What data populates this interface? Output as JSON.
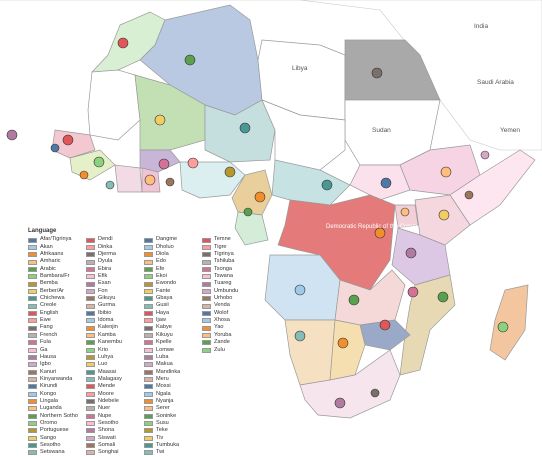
{
  "map": {
    "country_labels": [
      "Libya",
      "Sudan",
      "Saudi Arabia",
      "Yemen",
      "India",
      "Democratic Republic of the Congo"
    ]
  },
  "legend": {
    "title": "Language",
    "columns": [
      [
        {
          "label": "Afar/Tigrinya",
          "color": "#4e79a7"
        },
        {
          "label": "Akan",
          "color": "#a0cbe8"
        },
        {
          "label": "Afrikaans",
          "color": "#f28e2b"
        },
        {
          "label": "Amharic",
          "color": "#ffbe7d"
        },
        {
          "label": "Arabic",
          "color": "#59a14f"
        },
        {
          "label": "Bambara/Fr",
          "color": "#8cd17d"
        },
        {
          "label": "Bemba",
          "color": "#b6992d"
        },
        {
          "label": "Berber/Ar",
          "color": "#f1ce63"
        },
        {
          "label": "Chichewa",
          "color": "#499894"
        },
        {
          "label": "Creole",
          "color": "#86bcb6"
        },
        {
          "label": "English",
          "color": "#e15759"
        },
        {
          "label": "Ewe",
          "color": "#ff9d9a"
        },
        {
          "label": "Fang",
          "color": "#79706e"
        },
        {
          "label": "French",
          "color": "#bab0ac"
        },
        {
          "label": "Fula",
          "color": "#d37295"
        },
        {
          "label": "Ga",
          "color": "#fabfd2"
        },
        {
          "label": "Hausa",
          "color": "#b07aa1"
        },
        {
          "label": "Igbo",
          "color": "#d4a6c8"
        },
        {
          "label": "Kanuri",
          "color": "#9d7660"
        },
        {
          "label": "Kinyarwanda",
          "color": "#d7b5a6"
        },
        {
          "label": "Kirundi",
          "color": "#4e79a7"
        },
        {
          "label": "Kongo",
          "color": "#a0cbe8"
        },
        {
          "label": "Lingala",
          "color": "#f28e2b"
        },
        {
          "label": "Luganda",
          "color": "#ffbe7d"
        },
        {
          "label": "Northern Sotho",
          "color": "#59a14f"
        },
        {
          "label": "Oromo",
          "color": "#8cd17d"
        },
        {
          "label": "Portuguese",
          "color": "#b6992d"
        },
        {
          "label": "Sango",
          "color": "#f1ce63"
        },
        {
          "label": "Sesotho",
          "color": "#499894"
        },
        {
          "label": "Setswana",
          "color": "#86bcb6"
        }
      ],
      [
        {
          "label": "Dendi",
          "color": "#e15759"
        },
        {
          "label": "Dinka",
          "color": "#ff9d9a"
        },
        {
          "label": "Djerma",
          "color": "#79706e"
        },
        {
          "label": "Dyula",
          "color": "#bab0ac"
        },
        {
          "label": "Ebira",
          "color": "#d37295"
        },
        {
          "label": "Efik",
          "color": "#fabfd2"
        },
        {
          "label": "Esan",
          "color": "#b07aa1"
        },
        {
          "label": "Fon",
          "color": "#d4a6c8"
        },
        {
          "label": "Gikuyu",
          "color": "#9d7660"
        },
        {
          "label": "Gurma",
          "color": "#d7b5a6"
        },
        {
          "label": "Ibibio",
          "color": "#4e79a7"
        },
        {
          "label": "Idoma",
          "color": "#a0cbe8"
        },
        {
          "label": "Kalenjin",
          "color": "#f28e2b"
        },
        {
          "label": "Kamba",
          "color": "#ffbe7d"
        },
        {
          "label": "Kanembu",
          "color": "#59a14f"
        },
        {
          "label": "Krio",
          "color": "#8cd17d"
        },
        {
          "label": "Luhya",
          "color": "#b6992d"
        },
        {
          "label": "Luo",
          "color": "#f1ce63"
        },
        {
          "label": "Maasai",
          "color": "#499894"
        },
        {
          "label": "Malagasy",
          "color": "#86bcb6"
        },
        {
          "label": "Mende",
          "color": "#e15759"
        },
        {
          "label": "Moore",
          "color": "#ff9d9a"
        },
        {
          "label": "Ndebele",
          "color": "#79706e"
        },
        {
          "label": "Nuer",
          "color": "#bab0ac"
        },
        {
          "label": "Nupe",
          "color": "#d37295"
        },
        {
          "label": "Sesotho",
          "color": "#fabfd2"
        },
        {
          "label": "Shona",
          "color": "#b07aa1"
        },
        {
          "label": "Siswati",
          "color": "#d4a6c8"
        },
        {
          "label": "Somali",
          "color": "#9d7660"
        },
        {
          "label": "Songhai",
          "color": "#d7b5a6"
        }
      ],
      [
        {
          "label": "Dangme",
          "color": "#4e79a7"
        },
        {
          "label": "Dholuo",
          "color": "#a0cbe8"
        },
        {
          "label": "Diola",
          "color": "#f28e2b"
        },
        {
          "label": "Edo",
          "color": "#ffbe7d"
        },
        {
          "label": "Efe",
          "color": "#59a14f"
        },
        {
          "label": "Ekoi",
          "color": "#8cd17d"
        },
        {
          "label": "Ewondo",
          "color": "#b6992d"
        },
        {
          "label": "Fante",
          "color": "#f1ce63"
        },
        {
          "label": "Gbaya",
          "color": "#499894"
        },
        {
          "label": "Gusii",
          "color": "#86bcb6"
        },
        {
          "label": "Haya",
          "color": "#e15759"
        },
        {
          "label": "Ijaw",
          "color": "#ff9d9a"
        },
        {
          "label": "Kabye",
          "color": "#79706e"
        },
        {
          "label": "Kikuyu",
          "color": "#bab0ac"
        },
        {
          "label": "Kpelle",
          "color": "#d37295"
        },
        {
          "label": "Lomwe",
          "color": "#fabfd2"
        },
        {
          "label": "Luba",
          "color": "#b07aa1"
        },
        {
          "label": "Makua",
          "color": "#d4a6c8"
        },
        {
          "label": "Mandinka",
          "color": "#9d7660"
        },
        {
          "label": "Meru",
          "color": "#d7b5a6"
        },
        {
          "label": "Mossi",
          "color": "#4e79a7"
        },
        {
          "label": "Ngala",
          "color": "#a0cbe8"
        },
        {
          "label": "Nyanja",
          "color": "#f28e2b"
        },
        {
          "label": "Serer",
          "color": "#ffbe7d"
        },
        {
          "label": "Soninke",
          "color": "#59a14f"
        },
        {
          "label": "Susu",
          "color": "#8cd17d"
        },
        {
          "label": "Teke",
          "color": "#b6992d"
        },
        {
          "label": "Tiv",
          "color": "#f1ce63"
        },
        {
          "label": "Tumbuka",
          "color": "#499894"
        },
        {
          "label": "Twi",
          "color": "#86bcb6"
        }
      ],
      [
        {
          "label": "Temne",
          "color": "#e15759"
        },
        {
          "label": "Tigre",
          "color": "#ff9d9a"
        },
        {
          "label": "Tigrinya",
          "color": "#79706e"
        },
        {
          "label": "Tshiluba",
          "color": "#bab0ac"
        },
        {
          "label": "Tsonga",
          "color": "#d37295"
        },
        {
          "label": "Tswana",
          "color": "#fabfd2"
        },
        {
          "label": "Tuareg",
          "color": "#b07aa1"
        },
        {
          "label": "Umbundu",
          "color": "#d4a6c8"
        },
        {
          "label": "Urhobo",
          "color": "#9d7660"
        },
        {
          "label": "Venda",
          "color": "#d7b5a6"
        },
        {
          "label": "Wolof",
          "color": "#4e79a7"
        },
        {
          "label": "Xhosa",
          "color": "#a0cbe8"
        },
        {
          "label": "Yao",
          "color": "#f28e2b"
        },
        {
          "label": "Yoruba",
          "color": "#ffbe7d"
        },
        {
          "label": "Zande",
          "color": "#59a14f"
        },
        {
          "label": "Zulu",
          "color": "#8cd17d"
        }
      ]
    ]
  }
}
